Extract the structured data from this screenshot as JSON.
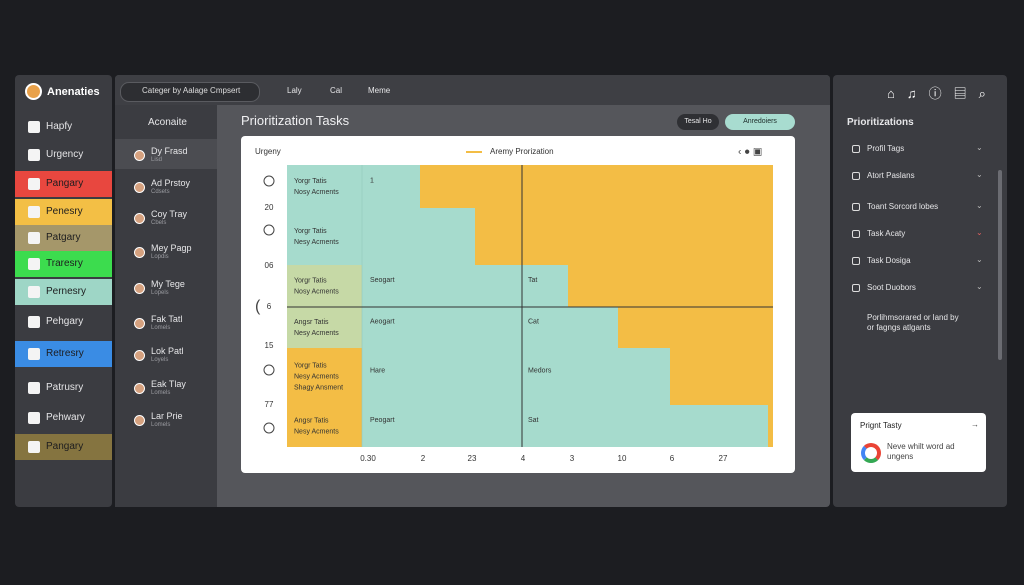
{
  "sidebar": {
    "title": "Anenaties",
    "items": [
      {
        "label": "Hapfy"
      },
      {
        "label": "Urgency"
      },
      {
        "label": "Pangary",
        "color": "#e8473f"
      },
      {
        "label": "Penesry",
        "color": "#f3bf45"
      },
      {
        "label": "Patgary",
        "color": "#a5976a"
      },
      {
        "label": "Traresry",
        "color": "#3cdc4e"
      },
      {
        "label": "Pernesry",
        "color": "#9ed6c6"
      },
      {
        "label": "Pehgary"
      },
      {
        "label": "Retresry",
        "color": "#3a8ce4"
      },
      {
        "label": "Patrusry"
      },
      {
        "label": "Pehwary"
      },
      {
        "label": "Pangary",
        "color": "#857440"
      }
    ]
  },
  "topbar": {
    "dropdown": "Categer by Aalage Cmpsert",
    "tabs": [
      "Laly",
      "Cal",
      "Meme"
    ]
  },
  "list": {
    "header": "Aconaite",
    "items": [
      {
        "title": "Dy Frasd",
        "sub": "Lisd"
      },
      {
        "title": "Ad Prstoy",
        "sub": "Cdsets"
      },
      {
        "title": "Coy Tray",
        "sub": "Cbels"
      },
      {
        "title": "Mey Pagp",
        "sub": "Lopdis"
      },
      {
        "title": "My Tege",
        "sub": "Lopels"
      },
      {
        "title": "Fak Tatl",
        "sub": "Lomels"
      },
      {
        "title": "Lok Patl",
        "sub": "Loyels"
      },
      {
        "title": "Eak Tlay",
        "sub": "Lomels"
      },
      {
        "title": "Lar Prie",
        "sub": "Lomels"
      }
    ]
  },
  "main": {
    "title": "Prioritization Tasks",
    "buttons": [
      "Tesal Ho",
      "Anredoiers"
    ]
  },
  "matrix": {
    "y_title": "Urgeny",
    "legend": "Aremy Prorization",
    "rows": [
      {
        "label": [
          "Yorgr Tatis",
          "Nosy Acments"
        ],
        "cells": [
          "1"
        ]
      },
      {
        "label": [
          "Yorgr Tatis",
          "Nesy Acments"
        ],
        "cells": []
      },
      {
        "label": [
          "Yorgr Tatis",
          "Nosy Acments"
        ],
        "cells": [
          "Seogart",
          "Tat"
        ]
      },
      {
        "label": [
          "Angsr Tatis",
          "Nesy Acments"
        ],
        "cells": [
          "Aeogart",
          "Cat"
        ]
      },
      {
        "label": [
          "Yorgr Tatis",
          "Nesy Acments",
          "Shagy Ansment"
        ],
        "cells": [
          "Hare",
          "Medors"
        ]
      },
      {
        "label": [
          "Angsr Tatis",
          "Nesy Acments"
        ],
        "cells": [
          "Peogart",
          "Sat"
        ]
      }
    ],
    "y_labels": [
      "20",
      "06",
      "6",
      "15",
      "77"
    ],
    "x_labels": [
      "0.30",
      "2",
      "23",
      "4",
      "3",
      "10",
      "6",
      "27"
    ]
  },
  "right": {
    "title": "Prioritizations",
    "items": [
      "Profil Tags",
      "Atort Paslans",
      "Toant Sorcord lobes",
      "Task Acaty",
      "Task Dosiga",
      "Soot Duobors"
    ],
    "note": [
      "Porlihmsorared or land by",
      "or fagngs atlgants"
    ],
    "card": {
      "title": "Prignt Tasty",
      "text": [
        "Neve whilt word ad",
        "ungens"
      ]
    }
  }
}
